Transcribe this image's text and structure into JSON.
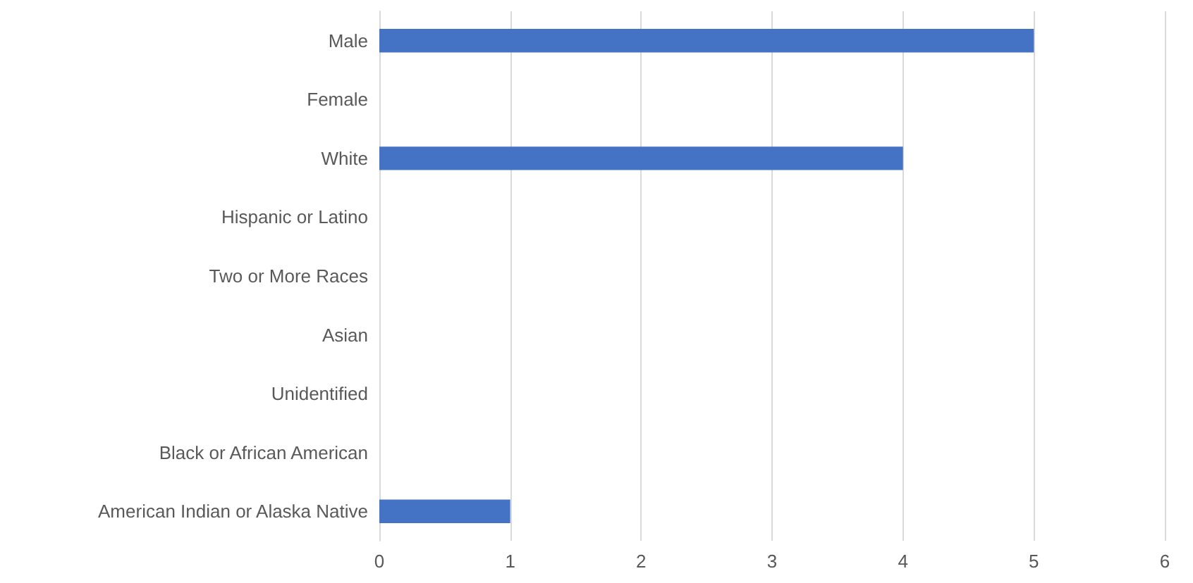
{
  "chart_data": {
    "type": "bar",
    "orientation": "horizontal",
    "categories": [
      "Male",
      "Female",
      "White",
      "Hispanic or Latino",
      "Two or More Races",
      "Asian",
      "Unidentified",
      "Black or African American",
      "American Indian or Alaska Native"
    ],
    "values": [
      5,
      0,
      4,
      0,
      0,
      0,
      0,
      0,
      1
    ],
    "color": "#4472c4",
    "xlim": [
      0,
      6
    ],
    "xticks": [
      0,
      1,
      2,
      3,
      4,
      5,
      6
    ],
    "grid": "x"
  }
}
